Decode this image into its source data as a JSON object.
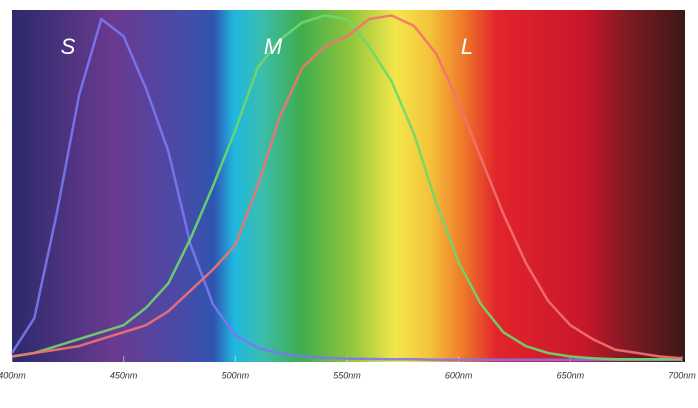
{
  "chart_data": {
    "type": "line",
    "annotations": [
      "S",
      "M",
      "L"
    ],
    "x": [
      400,
      410,
      420,
      430,
      440,
      450,
      460,
      470,
      480,
      490,
      500,
      510,
      520,
      530,
      540,
      550,
      560,
      570,
      580,
      590,
      600,
      610,
      620,
      630,
      640,
      650,
      660,
      670,
      680,
      690,
      700
    ],
    "series": [
      {
        "name": "S",
        "color": "#7b78f2",
        "values": [
          0.02,
          0.12,
          0.42,
          0.76,
          0.98,
          0.93,
          0.78,
          0.6,
          0.33,
          0.16,
          0.07,
          0.035,
          0.018,
          0.01,
          0.006,
          0.004,
          0.003,
          0.002,
          0.002,
          0.001,
          0.001,
          0.001,
          0.001,
          0.001,
          0.001,
          0.001,
          0.001,
          0.001,
          0.001,
          0.001,
          0.001
        ]
      },
      {
        "name": "M",
        "color": "#6ed86a",
        "values": [
          0.01,
          0.02,
          0.04,
          0.06,
          0.08,
          0.1,
          0.15,
          0.22,
          0.35,
          0.5,
          0.66,
          0.84,
          0.92,
          0.97,
          0.99,
          0.98,
          0.9,
          0.8,
          0.65,
          0.45,
          0.28,
          0.16,
          0.08,
          0.04,
          0.02,
          0.01,
          0.005,
          0.002,
          0.002,
          0.002,
          0.002
        ]
      },
      {
        "name": "L",
        "color": "#f27272",
        "values": [
          0.01,
          0.02,
          0.03,
          0.04,
          0.06,
          0.08,
          0.1,
          0.14,
          0.2,
          0.26,
          0.33,
          0.5,
          0.7,
          0.84,
          0.9,
          0.93,
          0.98,
          0.99,
          0.96,
          0.88,
          0.74,
          0.58,
          0.42,
          0.28,
          0.17,
          0.1,
          0.06,
          0.03,
          0.02,
          0.01,
          0.005
        ]
      }
    ],
    "xlim": [
      400,
      700
    ],
    "xticks": [
      {
        "value": 400,
        "label": "400nm"
      },
      {
        "value": 450,
        "label": "450nm"
      },
      {
        "value": 500,
        "label": "500nm"
      },
      {
        "value": 550,
        "label": "550nm"
      },
      {
        "value": 600,
        "label": "600nm"
      },
      {
        "value": 650,
        "label": "650nm"
      },
      {
        "value": 700,
        "label": "700nm"
      }
    ],
    "ylim": [
      0,
      1
    ]
  }
}
